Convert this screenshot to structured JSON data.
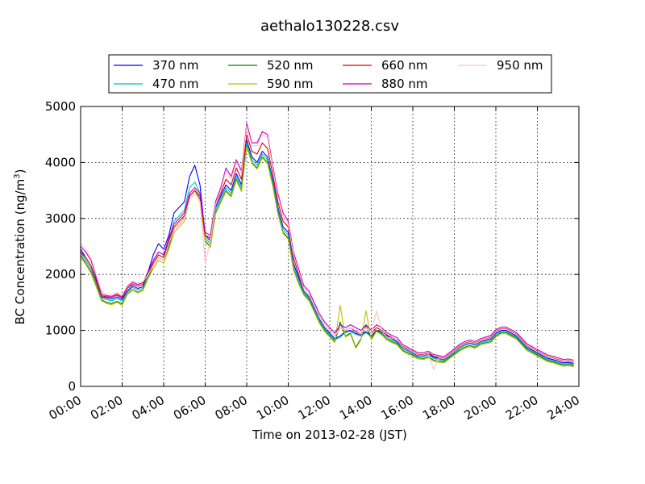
{
  "chart_data": {
    "type": "line",
    "title": "aethalo130228.csv",
    "xlabel": "Time on 2013-02-28 (JST)",
    "ylabel": "BC Concentration (ng/m",
    "ylabel_superscript": "3",
    "ylabel_suffix": ")",
    "x_unit": "hours",
    "xlim": [
      0,
      24
    ],
    "ylim": [
      0,
      5000
    ],
    "grid": true,
    "legend_position": "top, above plot",
    "x_ticks": [
      {
        "v": 0,
        "label": "00:00"
      },
      {
        "v": 2,
        "label": "02:00"
      },
      {
        "v": 4,
        "label": "04:00"
      },
      {
        "v": 6,
        "label": "06:00"
      },
      {
        "v": 8,
        "label": "08:00"
      },
      {
        "v": 10,
        "label": "10:00"
      },
      {
        "v": 12,
        "label": "12:00"
      },
      {
        "v": 14,
        "label": "14:00"
      },
      {
        "v": 16,
        "label": "16:00"
      },
      {
        "v": 18,
        "label": "18:00"
      },
      {
        "v": 20,
        "label": "20:00"
      },
      {
        "v": 22,
        "label": "22:00"
      },
      {
        "v": 24,
        "label": "24:00"
      }
    ],
    "y_ticks": [
      {
        "v": 0,
        "label": "0"
      },
      {
        "v": 1000,
        "label": "1000"
      },
      {
        "v": 2000,
        "label": "2000"
      },
      {
        "v": 3000,
        "label": "3000"
      },
      {
        "v": 4000,
        "label": "4000"
      },
      {
        "v": 5000,
        "label": "5000"
      }
    ],
    "x": [
      0,
      0.25,
      0.5,
      0.75,
      1.0,
      1.25,
      1.5,
      1.75,
      2.0,
      2.25,
      2.5,
      2.75,
      3.0,
      3.25,
      3.5,
      3.75,
      4.0,
      4.25,
      4.5,
      4.75,
      5.0,
      5.25,
      5.5,
      5.75,
      6.0,
      6.25,
      6.5,
      6.75,
      7.0,
      7.25,
      7.5,
      7.75,
      8.0,
      8.25,
      8.5,
      8.75,
      9.0,
      9.25,
      9.5,
      9.75,
      10.0,
      10.25,
      10.5,
      10.75,
      11.0,
      11.25,
      11.5,
      11.75,
      12.0,
      12.25,
      12.5,
      12.75,
      13.0,
      13.25,
      13.5,
      13.75,
      14.0,
      14.25,
      14.5,
      14.75,
      15.0,
      15.25,
      15.5,
      15.75,
      16.0,
      16.25,
      16.5,
      16.75,
      17.0,
      17.25,
      17.5,
      17.75,
      18.0,
      18.25,
      18.5,
      18.75,
      19.0,
      19.25,
      19.5,
      19.75,
      20.0,
      20.25,
      20.5,
      20.75,
      21.0,
      21.25,
      21.5,
      21.75,
      22.0,
      22.25,
      22.5,
      22.75,
      23.0,
      23.25,
      23.5,
      23.75
    ],
    "series": [
      {
        "name": "370 nm",
        "color": "#0000ff",
        "values": [
          2450,
          2300,
          2150,
          1900,
          1600,
          1580,
          1560,
          1600,
          1550,
          1700,
          1800,
          1750,
          1780,
          2050,
          2350,
          2550,
          2450,
          2700,
          3100,
          3200,
          3300,
          3750,
          3950,
          3600,
          2700,
          2600,
          3200,
          3400,
          3600,
          3500,
          3800,
          3600,
          4400,
          4100,
          4000,
          4200,
          4100,
          3700,
          3200,
          2850,
          2750,
          2200,
          1950,
          1700,
          1600,
          1400,
          1200,
          1050,
          950,
          850,
          900,
          980,
          1000,
          950,
          920,
          980,
          900,
          1000,
          980,
          900,
          850,
          800,
          700,
          650,
          600,
          550,
          550,
          580,
          520,
          500,
          480,
          550,
          620,
          700,
          750,
          780,
          750,
          800,
          820,
          850,
          950,
          1000,
          1000,
          950,
          900,
          800,
          700,
          650,
          600,
          550,
          500,
          480,
          450,
          420,
          430,
          410
        ]
      },
      {
        "name": "470 nm",
        "color": "#00bfbf",
        "values": [
          2400,
          2250,
          2100,
          1850,
          1580,
          1550,
          1530,
          1570,
          1520,
          1680,
          1770,
          1720,
          1750,
          2000,
          2250,
          2400,
          2350,
          2600,
          2950,
          3050,
          3150,
          3550,
          3650,
          3450,
          2650,
          2550,
          3150,
          3350,
          3550,
          3450,
          3750,
          3550,
          4350,
          4050,
          3950,
          4150,
          4050,
          3650,
          3150,
          2800,
          2700,
          2150,
          1900,
          1680,
          1580,
          1380,
          1180,
          1030,
          930,
          830,
          880,
          960,
          980,
          930,
          900,
          960,
          880,
          980,
          960,
          880,
          830,
          780,
          680,
          630,
          580,
          530,
          530,
          560,
          500,
          480,
          460,
          530,
          600,
          680,
          730,
          760,
          730,
          780,
          800,
          830,
          930,
          980,
          980,
          930,
          880,
          780,
          680,
          630,
          580,
          530,
          480,
          460,
          430,
          400,
          410,
          390
        ]
      },
      {
        "name": "520 nm",
        "color": "#008000",
        "values": [
          2350,
          2200,
          2050,
          1800,
          1550,
          1500,
          1480,
          1520,
          1470,
          1650,
          1730,
          1680,
          1720,
          1950,
          2150,
          2300,
          2250,
          2500,
          2800,
          2900,
          3000,
          3400,
          3500,
          3350,
          2600,
          2500,
          3100,
          3300,
          3500,
          3400,
          3700,
          3500,
          4300,
          4000,
          3900,
          4100,
          4000,
          3600,
          3100,
          2750,
          2650,
          2100,
          1850,
          1650,
          1550,
          1350,
          1150,
          1000,
          900,
          800,
          1150,
          900,
          950,
          700,
          850,
          1100,
          850,
          1000,
          940,
          850,
          800,
          760,
          650,
          600,
          560,
          510,
          500,
          530,
          470,
          450,
          440,
          510,
          580,
          650,
          700,
          730,
          700,
          760,
          780,
          800,
          900,
          960,
          960,
          910,
          860,
          760,
          660,
          610,
          560,
          510,
          460,
          440,
          410,
          380,
          390,
          370
        ]
      },
      {
        "name": "590 nm",
        "color": "#bfbf00",
        "values": [
          2300,
          2180,
          2020,
          1780,
          1530,
          1480,
          1460,
          1500,
          1450,
          1640,
          1720,
          1670,
          1710,
          1930,
          2100,
          2250,
          2200,
          2450,
          2750,
          2850,
          2950,
          3350,
          3450,
          3300,
          2580,
          2480,
          3080,
          3280,
          3480,
          3380,
          3680,
          3480,
          4280,
          3980,
          3880,
          4080,
          3980,
          3580,
          3080,
          2730,
          2630,
          2080,
          1830,
          1630,
          1530,
          1330,
          1130,
          980,
          880,
          780,
          1450,
          880,
          930,
          680,
          830,
          1350,
          830,
          980,
          920,
          830,
          780,
          740,
          630,
          580,
          540,
          490,
          480,
          510,
          450,
          430,
          420,
          490,
          560,
          630,
          680,
          710,
          680,
          740,
          760,
          780,
          880,
          940,
          940,
          890,
          840,
          740,
          640,
          590,
          540,
          490,
          440,
          420,
          390,
          360,
          370,
          350
        ]
      },
      {
        "name": "660 nm",
        "color": "#e00000",
        "values": [
          2400,
          2300,
          2150,
          1880,
          1620,
          1600,
          1590,
          1630,
          1580,
          1750,
          1830,
          1790,
          1820,
          2020,
          2200,
          2350,
          2300,
          2600,
          2850,
          2950,
          3050,
          3400,
          3500,
          3400,
          2700,
          2650,
          3250,
          3450,
          3700,
          3600,
          3900,
          3700,
          4500,
          4200,
          4150,
          4350,
          4250,
          3800,
          3300,
          2950,
          2850,
          2300,
          2000,
          1750,
          1650,
          1450,
          1250,
          1100,
          1000,
          900,
          1050,
          1000,
          1050,
          980,
          950,
          1050,
          950,
          1050,
          1000,
          920,
          870,
          830,
          720,
          670,
          620,
          570,
          570,
          600,
          540,
          520,
          500,
          570,
          640,
          720,
          770,
          800,
          770,
          820,
          850,
          880,
          980,
          1030,
          1030,
          980,
          930,
          830,
          730,
          680,
          630,
          580,
          530,
          510,
          480,
          450,
          460,
          440
        ]
      },
      {
        "name": "880 nm",
        "color": "#bf00bf",
        "values": [
          2500,
          2400,
          2250,
          1950,
          1650,
          1620,
          1610,
          1650,
          1600,
          1780,
          1860,
          1820,
          1850,
          2050,
          2250,
          2400,
          2350,
          2650,
          2900,
          3000,
          3100,
          3450,
          3550,
          3450,
          2750,
          2700,
          3300,
          3550,
          3900,
          3750,
          4050,
          3850,
          4700,
          4350,
          4350,
          4550,
          4500,
          3950,
          3450,
          3100,
          2950,
          2400,
          2100,
          1800,
          1700,
          1500,
          1300,
          1150,
          1050,
          950,
          1100,
          1050,
          1100,
          1050,
          1000,
          1100,
          1000,
          1100,
          1050,
          960,
          910,
          870,
          750,
          700,
          650,
          600,
          600,
          630,
          570,
          550,
          530,
          600,
          670,
          750,
          800,
          830,
          800,
          850,
          880,
          910,
          1010,
          1060,
          1060,
          1010,
          960,
          860,
          760,
          710,
          660,
          610,
          560,
          540,
          510,
          480,
          490,
          470
        ]
      },
      {
        "name": "950 nm",
        "color": "#ffc0cb",
        "values": [
          2550,
          2450,
          2300,
          2000,
          1700,
          1650,
          1640,
          1680,
          1630,
          1800,
          1880,
          1840,
          1870,
          2000,
          2150,
          2300,
          2250,
          2550,
          2800,
          2900,
          3000,
          3350,
          3450,
          3300,
          2200,
          2600,
          3250,
          3500,
          3850,
          3700,
          4000,
          3800,
          4650,
          4300,
          4300,
          4500,
          4450,
          3900,
          3400,
          3050,
          2900,
          2350,
          2050,
          1750,
          1650,
          1450,
          1250,
          1100,
          1000,
          900,
          1050,
          1000,
          1050,
          1000,
          950,
          1050,
          950,
          1350,
          1000,
          880,
          860,
          830,
          710,
          660,
          610,
          560,
          560,
          590,
          300,
          510,
          490,
          560,
          630,
          710,
          760,
          790,
          760,
          810,
          840,
          870,
          970,
          1020,
          1020,
          970,
          920,
          820,
          720,
          670,
          620,
          570,
          520,
          500,
          470,
          440,
          450,
          430
        ]
      }
    ]
  }
}
